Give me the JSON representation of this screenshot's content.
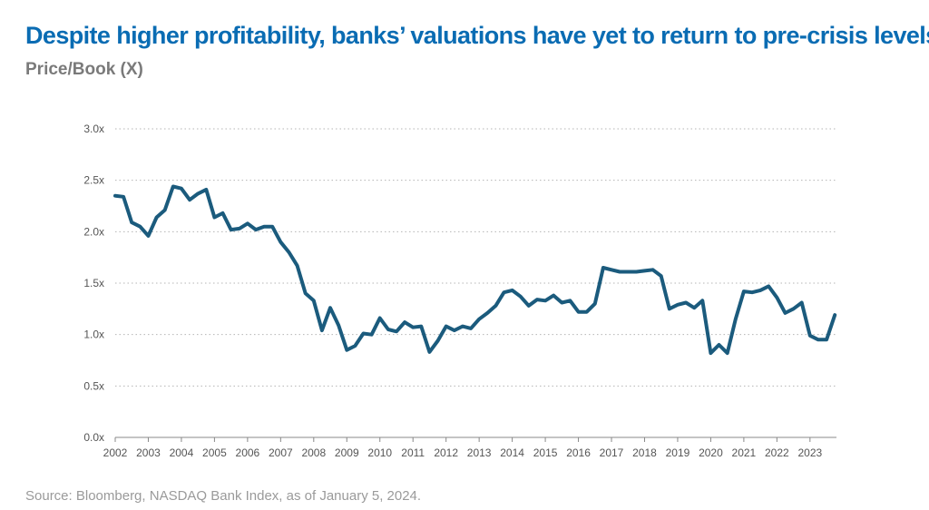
{
  "title": "Despite higher profitability, banks’ valuations have yet to return to pre-crisis levels",
  "subtitle": "Price/Book (X)",
  "source": "Source: Bloomberg, NASDAQ Bank Index, as of January 5, 2024.",
  "colors": {
    "title": "#0a6cb3",
    "line": "#1b5b7d",
    "grid": "#b5b5b5",
    "text": "#555555"
  },
  "chart_data": {
    "type": "line",
    "title": "Despite higher profitability, banks’ valuations have yet to return to pre-crisis levels",
    "ylabel": "Price/Book (X)",
    "xlabel": "",
    "ylim": [
      0,
      3.0
    ],
    "xlim": [
      2002.0,
      2023.8
    ],
    "yticks": [
      0,
      0.5,
      1.0,
      1.5,
      2.0,
      2.5,
      3.0
    ],
    "ytick_labels": [
      "0.0x",
      "0.5x",
      "1.0x",
      "1.5x",
      "2.0x",
      "2.5x",
      "3.0x"
    ],
    "xticks": [
      2002,
      2003,
      2004,
      2005,
      2006,
      2007,
      2008,
      2009,
      2010,
      2011,
      2012,
      2013,
      2014,
      2015,
      2016,
      2017,
      2018,
      2019,
      2020,
      2021,
      2022,
      2023
    ],
    "xtick_labels": [
      "2002",
      "2003",
      "2004",
      "2005",
      "2006",
      "2007",
      "2008",
      "2009",
      "2010",
      "2011",
      "2012",
      "2013",
      "2014",
      "2015",
      "2016",
      "2017",
      "2018",
      "2019",
      "2020",
      "2021",
      "2022",
      "2023"
    ],
    "grid": "horizontal dotted",
    "legend": "none",
    "series": [
      {
        "x": [
          2002.0,
          2002.25,
          2002.5,
          2002.75,
          2003.0,
          2003.25,
          2003.5,
          2003.75,
          2004.0,
          2004.25,
          2004.5,
          2004.75,
          2005.0,
          2005.25,
          2005.5,
          2005.75,
          2006.0,
          2006.25,
          2006.5,
          2006.75,
          2007.0,
          2007.25,
          2007.5,
          2007.75,
          2008.0,
          2008.25,
          2008.5,
          2008.75,
          2009.0,
          2009.25,
          2009.5,
          2009.75,
          2010.0,
          2010.25,
          2010.5,
          2010.75,
          2011.0,
          2011.25,
          2011.5,
          2011.75,
          2012.0,
          2012.25,
          2012.5,
          2012.75,
          2013.0,
          2013.25,
          2013.5,
          2013.75,
          2014.0,
          2014.25,
          2014.5,
          2014.75,
          2015.0,
          2015.25,
          2015.5,
          2015.75,
          2016.0,
          2016.25,
          2016.5,
          2016.75,
          2017.0,
          2017.25,
          2017.5,
          2017.75,
          2018.0,
          2018.25,
          2018.5,
          2018.75,
          2019.0,
          2019.25,
          2019.5,
          2019.75,
          2020.0,
          2020.25,
          2020.5,
          2020.75,
          2021.0,
          2021.25,
          2021.5,
          2021.75,
          2022.0,
          2022.25,
          2022.5,
          2022.75,
          2023.0,
          2023.25,
          2023.5,
          2023.75
        ],
        "values": [
          2.35,
          2.34,
          2.09,
          2.05,
          1.96,
          2.14,
          2.21,
          2.44,
          2.42,
          2.31,
          2.37,
          2.41,
          2.14,
          2.18,
          2.02,
          2.03,
          2.08,
          2.02,
          2.05,
          2.05,
          1.9,
          1.8,
          1.67,
          1.4,
          1.33,
          1.04,
          1.26,
          1.09,
          0.85,
          0.89,
          1.01,
          1.0,
          1.16,
          1.05,
          1.03,
          1.12,
          1.07,
          1.08,
          0.83,
          0.94,
          1.08,
          1.04,
          1.08,
          1.06,
          1.15,
          1.21,
          1.28,
          1.41,
          1.43,
          1.37,
          1.28,
          1.34,
          1.33,
          1.38,
          1.31,
          1.33,
          1.22,
          1.22,
          1.3,
          1.65,
          1.63,
          1.61,
          1.61,
          1.61,
          1.62,
          1.63,
          1.57,
          1.25,
          1.29,
          1.31,
          1.26,
          1.33,
          0.82,
          0.9,
          0.82,
          1.15,
          1.42,
          1.41,
          1.43,
          1.47,
          1.36,
          1.21,
          1.25,
          1.31,
          0.99,
          0.95,
          0.95,
          1.19
        ]
      }
    ]
  }
}
